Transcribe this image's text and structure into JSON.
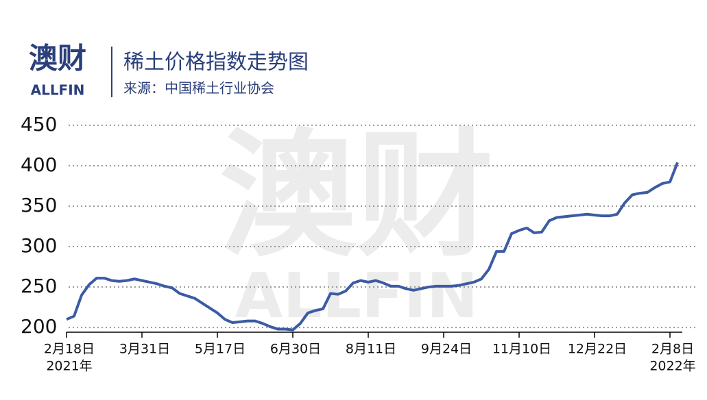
{
  "chart_data": {
    "type": "line",
    "title": "稀土价格指数走势图",
    "subtitle": "来源：中国稀土行业协会",
    "logo": "澳财",
    "logo_en": "ALLFIN",
    "watermark": "澳财",
    "watermark_en": "ALLFIN",
    "categories": [
      "2月18日",
      null,
      null,
      null,
      null,
      null,
      null,
      null,
      null,
      null,
      "3月31日",
      null,
      null,
      null,
      null,
      null,
      null,
      null,
      null,
      null,
      "5月17日",
      null,
      null,
      null,
      null,
      null,
      null,
      null,
      null,
      null,
      "6月30日",
      null,
      null,
      null,
      null,
      null,
      null,
      null,
      null,
      null,
      "8月11日",
      null,
      null,
      null,
      null,
      null,
      null,
      null,
      null,
      null,
      "9月24日",
      null,
      null,
      null,
      null,
      null,
      null,
      null,
      null,
      null,
      "11月10日",
      null,
      null,
      null,
      null,
      null,
      null,
      null,
      null,
      null,
      "12月22日",
      null,
      null,
      null,
      null,
      null,
      null,
      null,
      null,
      null,
      "2月8日",
      null
    ],
    "year_labels": [
      {
        "index": 0,
        "text": "2021年"
      },
      {
        "index": 80,
        "text": "2022年"
      }
    ],
    "series": [
      {
        "color": "#3d5ba4",
        "values": [
          210,
          214,
          240,
          253,
          261,
          261,
          258,
          257,
          258,
          260,
          258,
          256,
          254,
          251,
          249,
          242,
          239,
          236,
          230,
          224,
          218,
          210,
          206,
          207,
          208,
          208,
          205,
          201,
          198,
          198,
          197,
          205,
          218,
          221,
          223,
          242,
          241,
          245,
          255,
          258,
          256,
          258,
          255,
          251,
          251,
          248,
          246,
          248,
          250,
          251,
          251,
          251,
          252,
          254,
          256,
          260,
          272,
          294,
          294,
          316,
          320,
          323,
          317,
          318,
          332,
          336,
          337,
          338,
          339,
          340,
          339,
          338,
          338,
          340,
          354,
          364,
          366,
          367,
          373,
          378,
          380,
          404
        ]
      }
    ],
    "ylim": [
      195,
      455
    ],
    "yticks": [
      200,
      250,
      300,
      350,
      400,
      450
    ],
    "grid": true
  }
}
